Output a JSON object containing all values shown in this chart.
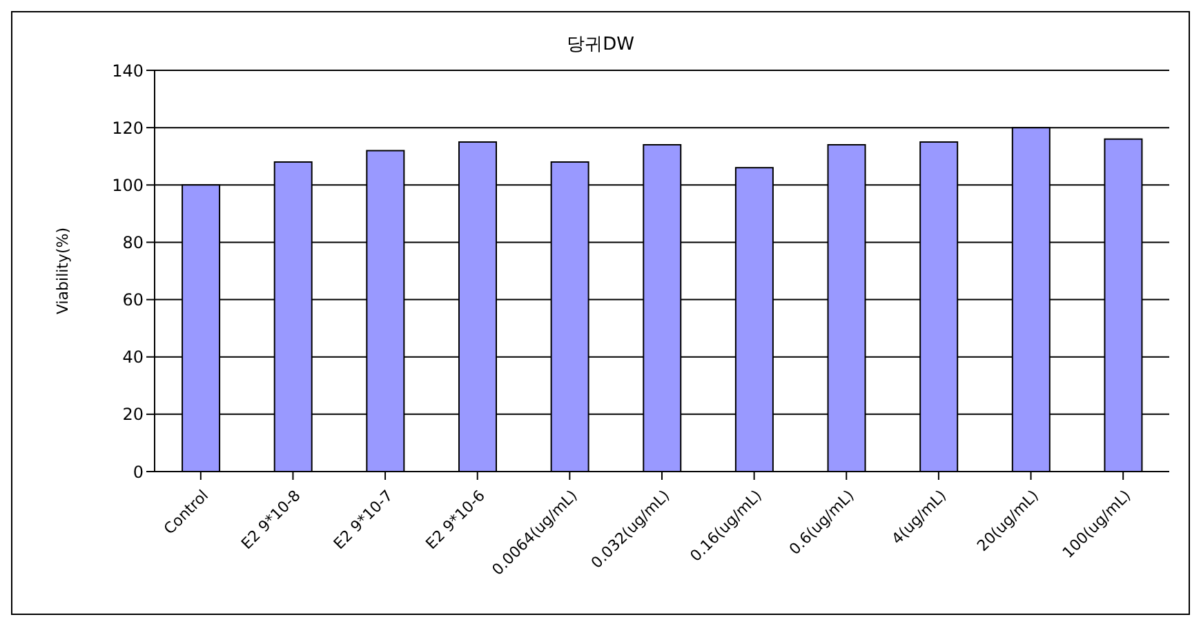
{
  "chart_data": {
    "type": "bar",
    "title": "당귀DW",
    "ylabel": "Viability(%)",
    "categories": [
      "Control",
      "E2 9*10-8",
      "E2 9*10-7",
      "E2 9*10-6",
      "0.0064(ug/mL)",
      "0.032(ug/mL)",
      "0.16(ug/mL)",
      "0.6(ug/mL)",
      "4(ug/mL)",
      "20(ug/mL)",
      "100(ug/mL)"
    ],
    "values": [
      100,
      108,
      112,
      115,
      108,
      114,
      106,
      114,
      115,
      120,
      116
    ],
    "color": "#9999ff",
    "ylim": [
      0,
      140
    ],
    "yticks": [
      0,
      20,
      40,
      60,
      80,
      100,
      120,
      140
    ],
    "grid": "y"
  }
}
